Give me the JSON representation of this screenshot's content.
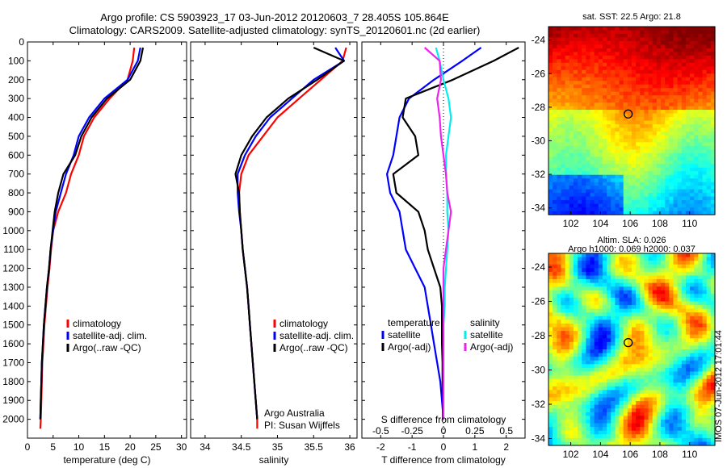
{
  "header": {
    "title_line1": "Argo profile: CS 5903923_17 03-Jun-2012 20120603_7 28.405S 105.864E",
    "title_line2": "Climatology: CARS2009. Satellite-adjusted climatology: synTS_20120601.nc (2d earlier)"
  },
  "footer": {
    "credit_line1": "Argo Australia",
    "credit_line2": "PI: Susan Wijffels",
    "timestamp": "IMOS 07-Jun-2012 17:01:44"
  },
  "colors": {
    "climatology": "#ff0000",
    "satellite": "#0000ff",
    "argo": "#000000",
    "salinity_satellite": "#00eeee",
    "salinity_argo": "#ee22ee"
  },
  "chart_data": [
    {
      "type": "line",
      "id": "temperature",
      "xlabel": "temperature (deg C)",
      "ylabel": "",
      "xlim": [
        0,
        31
      ],
      "ylim": [
        2100,
        0
      ],
      "y_reversed": true,
      "xticks": [
        0,
        5,
        10,
        15,
        20,
        25,
        30
      ],
      "yticks": [
        0,
        100,
        200,
        300,
        400,
        500,
        600,
        700,
        800,
        900,
        1000,
        1100,
        1200,
        1300,
        1400,
        1500,
        1600,
        1700,
        1800,
        1900,
        2000
      ],
      "legend_position": "lower-middle",
      "series": [
        {
          "name": "climatology",
          "color_key": "climatology",
          "x": [
            20.8,
            20.5,
            19.5,
            16.0,
            13.0,
            11.0,
            10.0,
            8.5,
            7.5,
            6.0,
            5.0,
            4.6,
            4.3,
            3.9,
            3.6,
            3.3,
            3.1,
            2.9,
            2.8,
            2.7,
            2.6,
            2.5
          ],
          "y": [
            30,
            100,
            200,
            300,
            400,
            500,
            600,
            700,
            800,
            900,
            1000,
            1100,
            1200,
            1300,
            1400,
            1500,
            1600,
            1700,
            1800,
            1900,
            2000,
            2050
          ]
        },
        {
          "name": "satellite-adj. clim.",
          "color_key": "satellite",
          "x": [
            22.0,
            21.5,
            19.5,
            15.0,
            12.0,
            10.0,
            9.0,
            7.5,
            6.5,
            5.5,
            5.0,
            4.5,
            4.2,
            3.8,
            3.5,
            3.2,
            3.0,
            2.8,
            2.7,
            2.6,
            2.5
          ],
          "y": [
            30,
            100,
            200,
            300,
            400,
            500,
            600,
            700,
            800,
            900,
            1000,
            1100,
            1200,
            1300,
            1400,
            1500,
            1600,
            1700,
            1800,
            1900,
            2000
          ]
        },
        {
          "name": "Argo(..raw -QC)",
          "color_key": "argo",
          "x": [
            22.5,
            22.0,
            20.0,
            15.5,
            12.5,
            10.5,
            9.3,
            7.0,
            6.0,
            5.3,
            4.9,
            4.5,
            4.2,
            3.8,
            3.5,
            3.2,
            3.0,
            2.8,
            2.7,
            2.6,
            2.5
          ],
          "y": [
            30,
            100,
            200,
            300,
            400,
            500,
            600,
            700,
            800,
            900,
            1000,
            1100,
            1200,
            1300,
            1400,
            1500,
            1600,
            1700,
            1800,
            1900,
            2000
          ]
        }
      ]
    },
    {
      "type": "line",
      "id": "salinity",
      "xlabel": "salinity",
      "ylabel": "",
      "xlim": [
        33.8,
        36.1
      ],
      "ylim": [
        2100,
        0
      ],
      "y_reversed": true,
      "xticks": [
        34,
        34.5,
        35,
        35.5,
        36
      ],
      "legend_position": "lower-right",
      "series": [
        {
          "name": "climatology",
          "color_key": "climatology",
          "x": [
            35.95,
            35.9,
            35.6,
            35.3,
            35.0,
            34.8,
            34.6,
            34.5,
            34.47,
            34.48,
            34.5,
            34.52,
            34.55,
            34.58,
            34.6,
            34.62,
            34.64,
            34.66,
            34.68,
            34.7,
            34.72,
            34.72
          ],
          "y": [
            30,
            100,
            200,
            300,
            400,
            500,
            600,
            700,
            800,
            900,
            1000,
            1100,
            1200,
            1300,
            1400,
            1500,
            1600,
            1700,
            1800,
            1900,
            2000,
            2050
          ]
        },
        {
          "name": "satellite-adj. clim.",
          "color_key": "satellite",
          "x": [
            35.8,
            35.92,
            35.5,
            35.2,
            34.9,
            34.7,
            34.55,
            34.45,
            34.45,
            34.47,
            34.5,
            34.52,
            34.55,
            34.58,
            34.6,
            34.62,
            34.64,
            34.66,
            34.68,
            34.7,
            34.72
          ],
          "y": [
            30,
            100,
            200,
            300,
            400,
            500,
            600,
            700,
            800,
            900,
            1000,
            1100,
            1200,
            1300,
            1400,
            1500,
            1600,
            1700,
            1800,
            1900,
            2000
          ]
        },
        {
          "name": "Argo(..raw -QC)",
          "color_key": "argo",
          "x": [
            35.5,
            35.92,
            35.55,
            35.15,
            34.85,
            34.65,
            34.5,
            34.42,
            34.47,
            34.48,
            34.5,
            34.52,
            34.55,
            34.58,
            34.6,
            34.62,
            34.64,
            34.66,
            34.68,
            34.7,
            34.72
          ],
          "y": [
            30,
            100,
            200,
            300,
            400,
            500,
            600,
            700,
            800,
            900,
            1000,
            1100,
            1200,
            1300,
            1400,
            1500,
            1600,
            1700,
            1800,
            1900,
            2000
          ]
        }
      ]
    },
    {
      "type": "line",
      "id": "difference",
      "xlabel": "T difference from climatology",
      "top_xlabel": "S difference from climatology",
      "xlim": [
        -2.6,
        2.6
      ],
      "ylim": [
        2100,
        0
      ],
      "y_reversed": true,
      "xticks": [
        -2,
        -1,
        0,
        1,
        2
      ],
      "top_xticks": [
        "-0.5",
        "-0.25",
        "0",
        "0.25",
        "0.5"
      ],
      "top_xtick_values": [
        -0.5,
        -0.25,
        0,
        0.25,
        0.5
      ],
      "salinity_scale": 4,
      "zero_line": "dotted",
      "legend_position": "lower-middle",
      "legend_groups": [
        "temperature",
        "salinity"
      ],
      "series": [
        {
          "group": "temperature",
          "name": "satellite",
          "color_key": "satellite",
          "x": [
            1.2,
            0.6,
            -0.3,
            -1.1,
            -1.4,
            -1.5,
            -1.6,
            -1.8,
            -1.7,
            -1.4,
            -1.3,
            -1.2,
            -0.9,
            -0.6,
            -0.5,
            -0.4,
            -0.3,
            -0.2,
            -0.1,
            -0.05,
            0
          ],
          "y": [
            30,
            100,
            200,
            300,
            400,
            500,
            600,
            700,
            800,
            900,
            1000,
            1100,
            1200,
            1300,
            1400,
            1500,
            1600,
            1700,
            1800,
            1900,
            2000
          ]
        },
        {
          "group": "temperature",
          "name": "Argo(-adj)",
          "color_key": "argo",
          "x": [
            2.4,
            1.6,
            0.3,
            -1.2,
            -1.3,
            -0.9,
            -0.8,
            -1.6,
            -1.5,
            -0.8,
            -0.6,
            -0.5,
            -0.3,
            -0.1,
            -0.05,
            -0.05,
            -0.05,
            -0.03,
            -0.03,
            -0.02,
            -0.02
          ],
          "y": [
            30,
            100,
            200,
            300,
            400,
            500,
            600,
            700,
            800,
            900,
            1000,
            1100,
            1200,
            1300,
            1400,
            1500,
            1600,
            1700,
            1800,
            1900,
            2000
          ]
        },
        {
          "group": "salinity",
          "name": "satellite",
          "color_key": "salinity_satellite",
          "x": [
            -0.06,
            -0.03,
            0.0,
            0.04,
            0.06,
            0.04,
            0.02,
            0.02,
            0.03,
            0.03,
            0.04,
            0.03,
            0.02,
            0.01,
            0.01,
            0.0,
            0.0,
            0.0,
            0.0,
            0.0,
            0.0
          ],
          "y": [
            30,
            100,
            200,
            300,
            400,
            500,
            600,
            700,
            800,
            900,
            1000,
            1100,
            1200,
            1300,
            1400,
            1500,
            1600,
            1700,
            1800,
            1900,
            2000
          ]
        },
        {
          "group": "salinity",
          "name": "Argo(-adj)",
          "color_key": "salinity_argo",
          "x": [
            -0.15,
            -0.03,
            -0.02,
            -0.05,
            -0.03,
            -0.02,
            0.0,
            0.02,
            0.03,
            0.06,
            0.04,
            0.02,
            0.0,
            0.0,
            0.0,
            0.0,
            0.0,
            0.0,
            0.0,
            0.0,
            0.0
          ],
          "y": [
            30,
            100,
            200,
            300,
            400,
            500,
            600,
            700,
            800,
            900,
            1000,
            1100,
            1200,
            1300,
            1400,
            1500,
            1600,
            1700,
            1800,
            1900,
            2000
          ]
        }
      ]
    },
    {
      "type": "heatmap",
      "id": "sst_map",
      "title": "sat. SST: 22.5  Argo: 21.8",
      "xlim": [
        100.5,
        111.7
      ],
      "ylim": [
        -34.4,
        -23.2
      ],
      "xticks": [
        102,
        104,
        106,
        108,
        110
      ],
      "yticks": [
        -24,
        -26,
        -28,
        -30,
        -32,
        -34
      ],
      "marker": {
        "lon": 105.864,
        "lat": -28.405
      },
      "colormap": "jet"
    },
    {
      "type": "heatmap",
      "id": "sla_map",
      "title_line1": "Altim. SLA: 0.026",
      "title_line2": "Argo h1000: 0.069 h2000: 0.037",
      "xlim": [
        100.5,
        111.7
      ],
      "ylim": [
        -34.4,
        -23.2
      ],
      "xticks": [
        102,
        104,
        106,
        108,
        110
      ],
      "yticks": [
        -24,
        -26,
        -28,
        -30,
        -32,
        -34
      ],
      "marker": {
        "lon": 105.864,
        "lat": -28.405
      },
      "colormap": "jet"
    }
  ]
}
